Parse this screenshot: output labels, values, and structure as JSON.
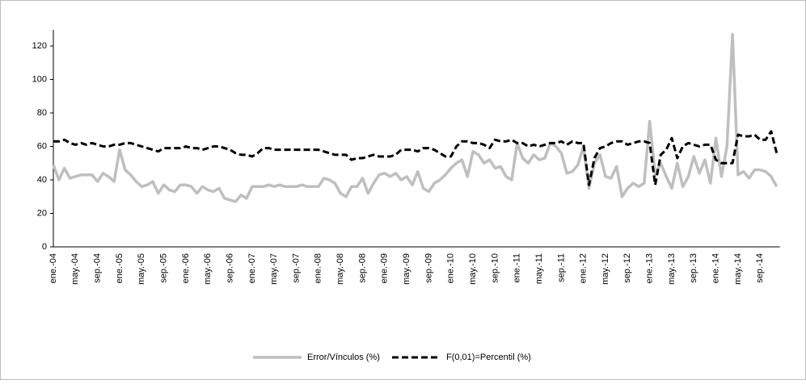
{
  "chart_data": {
    "type": "line",
    "categories": [
      "ene.-04",
      null,
      null,
      null,
      "may.-04",
      null,
      null,
      null,
      "sep.-04",
      null,
      null,
      null,
      "ene.-05",
      null,
      null,
      null,
      "may.-05",
      null,
      null,
      null,
      "sep.-05",
      null,
      null,
      null,
      "ene.-06",
      null,
      null,
      null,
      "may.-06",
      null,
      null,
      null,
      "sep.-06",
      null,
      null,
      null,
      "ene.-07",
      null,
      null,
      null,
      "may.-07",
      null,
      null,
      null,
      "sep.-07",
      null,
      null,
      null,
      "ene.-08",
      null,
      null,
      null,
      "may.-08",
      null,
      null,
      null,
      "sep.-08",
      null,
      null,
      null,
      "ene.-09",
      null,
      null,
      null,
      "may.-09",
      null,
      null,
      null,
      "sep.-09",
      null,
      null,
      null,
      "ene.-10",
      null,
      null,
      null,
      "may.-10",
      null,
      null,
      null,
      "sep.-10",
      null,
      null,
      null,
      "ene.-11",
      null,
      null,
      null,
      "may.-11",
      null,
      null,
      null,
      "sep.-11",
      null,
      null,
      null,
      "ene.-12",
      null,
      null,
      null,
      "may.-12",
      null,
      null,
      null,
      "sep.-12",
      null,
      null,
      null,
      "ene.-13",
      null,
      null,
      null,
      "may.-13",
      null,
      null,
      null,
      "sep.-13",
      null,
      null,
      null,
      "ene.-14",
      null,
      null,
      null,
      "may.-14",
      null,
      null,
      null,
      "sep.-14",
      null,
      null,
      null
    ],
    "series": [
      {
        "name": "Error/Vínculos (%)",
        "color": "#bfbfbf",
        "dash": false,
        "values": [
          49,
          40,
          47,
          41,
          42,
          43,
          43,
          43,
          39,
          44,
          42,
          39,
          58,
          46,
          43,
          39,
          36,
          37,
          39,
          32,
          37,
          34,
          33,
          37,
          37,
          36,
          32,
          36,
          34,
          33,
          35,
          29,
          28,
          27,
          31,
          29,
          36,
          36,
          36,
          37,
          36,
          37,
          36,
          36,
          36,
          37,
          36,
          36,
          36,
          41,
          40,
          38,
          32,
          30,
          36,
          36,
          41,
          32,
          38,
          43,
          44,
          42,
          44,
          40,
          42,
          37,
          45,
          35,
          33,
          38,
          40,
          43,
          47,
          50,
          52,
          42,
          57,
          55,
          50,
          52,
          47,
          48,
          42,
          40,
          62,
          53,
          50,
          55,
          52,
          53,
          62,
          60,
          56,
          44,
          45,
          49,
          60,
          35,
          50,
          55,
          42,
          41,
          48,
          30,
          35,
          38,
          36,
          38,
          75,
          43,
          50,
          42,
          35,
          50,
          36,
          42,
          54,
          44,
          52,
          38,
          65,
          42,
          60,
          127,
          43,
          45,
          41,
          46,
          46,
          45,
          42,
          36
        ]
      },
      {
        "name": "F(0,01)=Percentil (%)",
        "color": "#000000",
        "dash": true,
        "values": [
          63,
          63,
          64,
          62,
          61,
          62,
          61,
          62,
          61,
          60,
          60,
          61,
          61,
          62,
          62,
          61,
          60,
          59,
          58,
          57,
          59,
          59,
          59,
          59,
          60,
          59,
          59,
          58,
          59,
          60,
          60,
          59,
          58,
          56,
          55,
          55,
          54,
          56,
          59,
          59,
          58,
          58,
          58,
          58,
          58,
          58,
          58,
          58,
          58,
          57,
          56,
          55,
          55,
          55,
          52,
          53,
          53,
          54,
          55,
          54,
          54,
          54,
          55,
          58,
          58,
          58,
          57,
          59,
          59,
          58,
          56,
          54,
          54,
          60,
          63,
          63,
          62,
          62,
          61,
          59,
          64,
          63,
          63,
          64,
          62,
          62,
          60,
          61,
          60,
          61,
          62,
          62,
          63,
          61,
          63,
          62,
          62,
          37,
          53,
          59,
          60,
          62,
          63,
          63,
          61,
          62,
          63,
          63,
          62,
          37,
          55,
          58,
          65,
          53,
          60,
          62,
          61,
          60,
          61,
          61,
          52,
          50,
          50,
          50,
          67,
          66,
          66,
          67,
          64,
          64,
          69,
          56
        ]
      }
    ],
    "ylim": [
      0,
      120
    ],
    "yticks": [
      0,
      20,
      40,
      60,
      80,
      100,
      120
    ],
    "legend": "bottom"
  }
}
